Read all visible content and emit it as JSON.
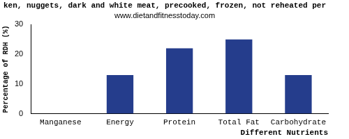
{
  "chart_data": {
    "type": "bar",
    "title": "ken, nuggets, dark and white meat, precooked, frozen, not reheated per",
    "subtitle": "www.dietandfitnesstoday.com",
    "x_label": "Different Nutrients",
    "y_label": "Percentage of RDH (%)",
    "categories": [
      "Manganese",
      "Energy",
      "Protein",
      "Total Fat",
      "Carbohydrate"
    ],
    "values": [
      0,
      13,
      22,
      25,
      13
    ],
    "color": "#253d8c",
    "ylim": [
      0,
      30
    ],
    "yticks": [
      0,
      10,
      20,
      30
    ],
    "grid": false
  }
}
